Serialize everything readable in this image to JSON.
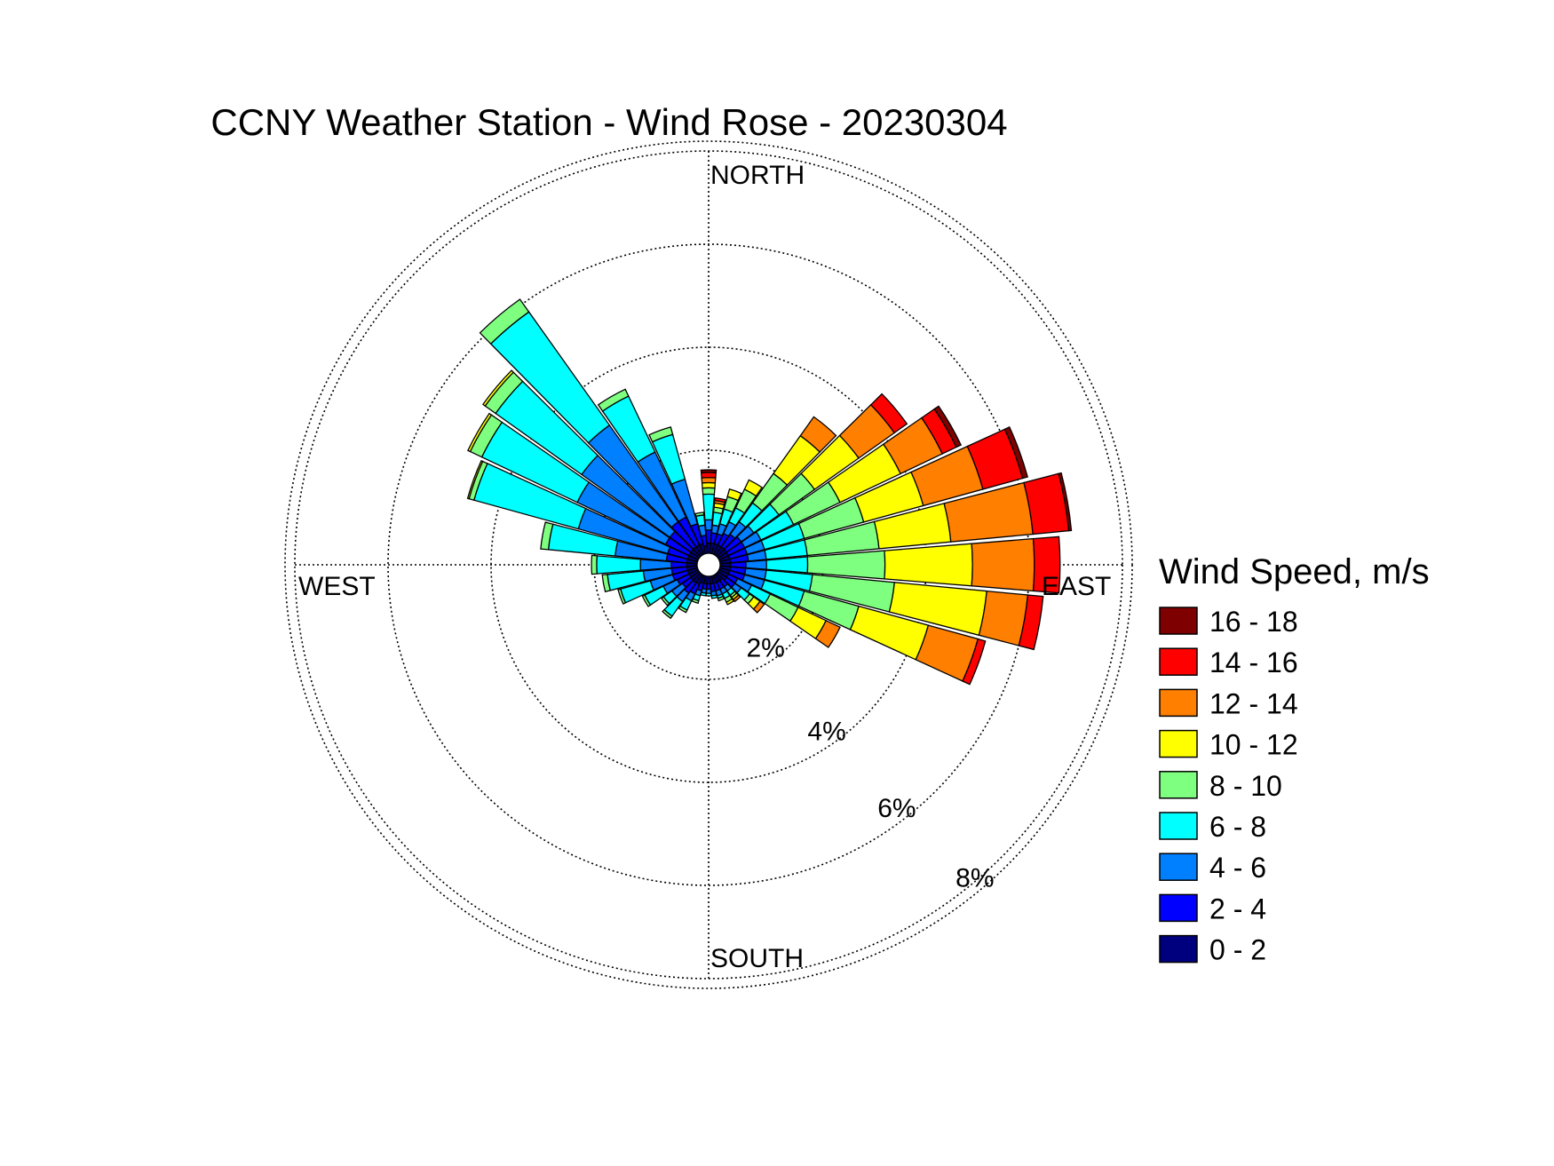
{
  "chart_data": {
    "type": "windrose",
    "title": "CCNY Weather Station - Wind Rose - 20230304",
    "compass_labels": {
      "north": "NORTH",
      "south": "SOUTH",
      "east": "EAST",
      "west": "WEST"
    },
    "radial_ticks": [
      2,
      4,
      6,
      8
    ],
    "radial_tick_labels": [
      "2%",
      "4%",
      "6%",
      "8%"
    ],
    "radial_unit": "%",
    "legend_title": "Wind Speed, m/s",
    "bins": [
      {
        "label": "0 - 2",
        "color": "#00007F"
      },
      {
        "label": "2 - 4",
        "color": "#0000FF"
      },
      {
        "label": "4 - 6",
        "color": "#007FFF"
      },
      {
        "label": "6 - 8",
        "color": "#00FFFF"
      },
      {
        "label": "8 - 10",
        "color": "#7FFF7F"
      },
      {
        "label": "10 - 12",
        "color": "#FFFF00"
      },
      {
        "label": "12 - 14",
        "color": "#FF7F00"
      },
      {
        "label": "14 - 16",
        "color": "#FF0000"
      },
      {
        "label": "16 - 18",
        "color": "#7F0000"
      }
    ],
    "directions_deg": [
      0,
      10,
      20,
      30,
      40,
      50,
      60,
      70,
      80,
      90,
      100,
      110,
      120,
      130,
      140,
      150,
      160,
      170,
      180,
      190,
      200,
      210,
      220,
      230,
      240,
      250,
      260,
      270,
      280,
      290,
      300,
      310,
      320,
      330,
      340,
      350
    ],
    "sectors": [
      {
        "dir": 0,
        "pct": [
          0.2,
          0.25,
          0.2,
          0.5,
          0.12,
          0.1,
          0.1,
          0.1,
          0.05
        ]
      },
      {
        "dir": 10,
        "pct": [
          0.2,
          0.2,
          0.15,
          0.25,
          0.1,
          0.08,
          0.05,
          0.05,
          0.0
        ]
      },
      {
        "dir": 20,
        "pct": [
          0.2,
          0.2,
          0.2,
          0.3,
          0.25,
          0.15,
          0.0,
          0.0,
          0.0
        ]
      },
      {
        "dir": 30,
        "pct": [
          0.2,
          0.25,
          0.25,
          0.3,
          0.4,
          0.2,
          0.0,
          0.0,
          0.0
        ]
      },
      {
        "dir": 40,
        "pct": [
          0.2,
          0.3,
          0.3,
          0.45,
          0.7,
          0.9,
          0.45,
          0.0,
          0.0
        ]
      },
      {
        "dir": 50,
        "pct": [
          0.2,
          0.35,
          0.3,
          0.6,
          0.85,
          1.05,
          0.85,
          0.3,
          0.0
        ]
      },
      {
        "dir": 60,
        "pct": [
          0.2,
          0.35,
          0.35,
          0.7,
          1.0,
          1.3,
          0.9,
          0.3,
          0.1
        ]
      },
      {
        "dir": 70,
        "pct": [
          0.2,
          0.35,
          0.35,
          0.8,
          1.2,
          1.2,
          1.2,
          0.8,
          0.1
        ]
      },
      {
        "dir": 80,
        "pct": [
          0.2,
          0.35,
          0.35,
          0.8,
          1.4,
          1.4,
          1.6,
          0.7,
          0.05
        ]
      },
      {
        "dir": 90,
        "pct": [
          0.2,
          0.3,
          0.4,
          0.8,
          1.5,
          1.7,
          1.2,
          0.5,
          0.0
        ]
      },
      {
        "dir": 100,
        "pct": [
          0.2,
          0.3,
          0.4,
          0.9,
          1.6,
          1.8,
          0.8,
          0.3,
          0.0
        ]
      },
      {
        "dir": 110,
        "pct": [
          0.2,
          0.3,
          0.4,
          0.8,
          1.1,
          1.4,
          1.0,
          0.15,
          0.0
        ]
      },
      {
        "dir": 120,
        "pct": [
          0.2,
          0.2,
          0.3,
          0.4,
          0.6,
          0.6,
          0.3,
          0.0,
          0.0
        ]
      },
      {
        "dir": 130,
        "pct": [
          0.2,
          0.2,
          0.15,
          0.2,
          0.1,
          0.15,
          0.1,
          0.0,
          0.0
        ]
      },
      {
        "dir": 140,
        "pct": [
          0.15,
          0.15,
          0.1,
          0.1,
          0.05,
          0.05,
          0.05,
          0.0,
          0.0
        ]
      },
      {
        "dir": 150,
        "pct": [
          0.15,
          0.15,
          0.1,
          0.1,
          0.08,
          0.05,
          0.0,
          0.0,
          0.0
        ]
      },
      {
        "dir": 160,
        "pct": [
          0.15,
          0.15,
          0.1,
          0.05,
          0.05,
          0.0,
          0.0,
          0.0,
          0.0
        ]
      },
      {
        "dir": 170,
        "pct": [
          0.15,
          0.15,
          0.08,
          0.05,
          0.0,
          0.0,
          0.0,
          0.0,
          0.0
        ]
      },
      {
        "dir": 180,
        "pct": [
          0.15,
          0.1,
          0.08,
          0.05,
          0.0,
          0.0,
          0.0,
          0.0,
          0.0
        ]
      },
      {
        "dir": 190,
        "pct": [
          0.15,
          0.1,
          0.08,
          0.05,
          0.0,
          0.0,
          0.0,
          0.0,
          0.0
        ]
      },
      {
        "dir": 200,
        "pct": [
          0.15,
          0.15,
          0.1,
          0.1,
          0.05,
          0.0,
          0.0,
          0.0,
          0.0
        ]
      },
      {
        "dir": 210,
        "pct": [
          0.2,
          0.2,
          0.15,
          0.2,
          0.05,
          0.0,
          0.0,
          0.0,
          0.0
        ]
      },
      {
        "dir": 220,
        "pct": [
          0.2,
          0.25,
          0.2,
          0.35,
          0.05,
          0.0,
          0.0,
          0.0,
          0.0
        ]
      },
      {
        "dir": 230,
        "pct": [
          0.2,
          0.2,
          0.25,
          0.2,
          0.05,
          0.0,
          0.0,
          0.0,
          0.0
        ]
      },
      {
        "dir": 240,
        "pct": [
          0.2,
          0.25,
          0.3,
          0.4,
          0.05,
          0.0,
          0.0,
          0.0,
          0.0
        ]
      },
      {
        "dir": 250,
        "pct": [
          0.2,
          0.3,
          0.45,
          0.6,
          0.05,
          0.0,
          0.0,
          0.0,
          0.0
        ]
      },
      {
        "dir": 260,
        "pct": [
          0.2,
          0.3,
          0.55,
          0.7,
          0.1,
          0.0,
          0.0,
          0.0,
          0.0
        ]
      },
      {
        "dir": 270,
        "pct": [
          0.2,
          0.3,
          0.6,
          0.85,
          0.1,
          0.0,
          0.0,
          0.0,
          0.0
        ]
      },
      {
        "dir": 280,
        "pct": [
          0.2,
          0.4,
          1.0,
          1.3,
          0.15,
          0.0,
          0.0,
          0.0,
          0.0
        ]
      },
      {
        "dir": 290,
        "pct": [
          0.2,
          0.4,
          1.8,
          2.1,
          0.1,
          0.03,
          0.0,
          0.0,
          0.0
        ]
      },
      {
        "dir": 300,
        "pct": [
          0.2,
          0.5,
          1.9,
          2.05,
          0.25,
          0.05,
          0.0,
          0.0,
          0.0
        ]
      },
      {
        "dir": 310,
        "pct": [
          0.2,
          0.5,
          2.1,
          2.05,
          0.25,
          0.05,
          0.0,
          0.0,
          0.0
        ]
      },
      {
        "dir": 320,
        "pct": [
          0.2,
          0.6,
          2.3,
          2.7,
          0.3,
          0.0,
          0.0,
          0.0,
          0.0
        ]
      },
      {
        "dir": 330,
        "pct": [
          0.2,
          0.6,
          1.4,
          1.2,
          0.15,
          0.0,
          0.0,
          0.0,
          0.0
        ]
      },
      {
        "dir": 340,
        "pct": [
          0.2,
          0.4,
          0.9,
          0.9,
          0.15,
          0.0,
          0.0,
          0.0,
          0.0
        ]
      },
      {
        "dir": 350,
        "pct": [
          0.15,
          0.2,
          0.2,
          0.2,
          0.05,
          0.0,
          0.0,
          0.0,
          0.0
        ]
      }
    ]
  }
}
